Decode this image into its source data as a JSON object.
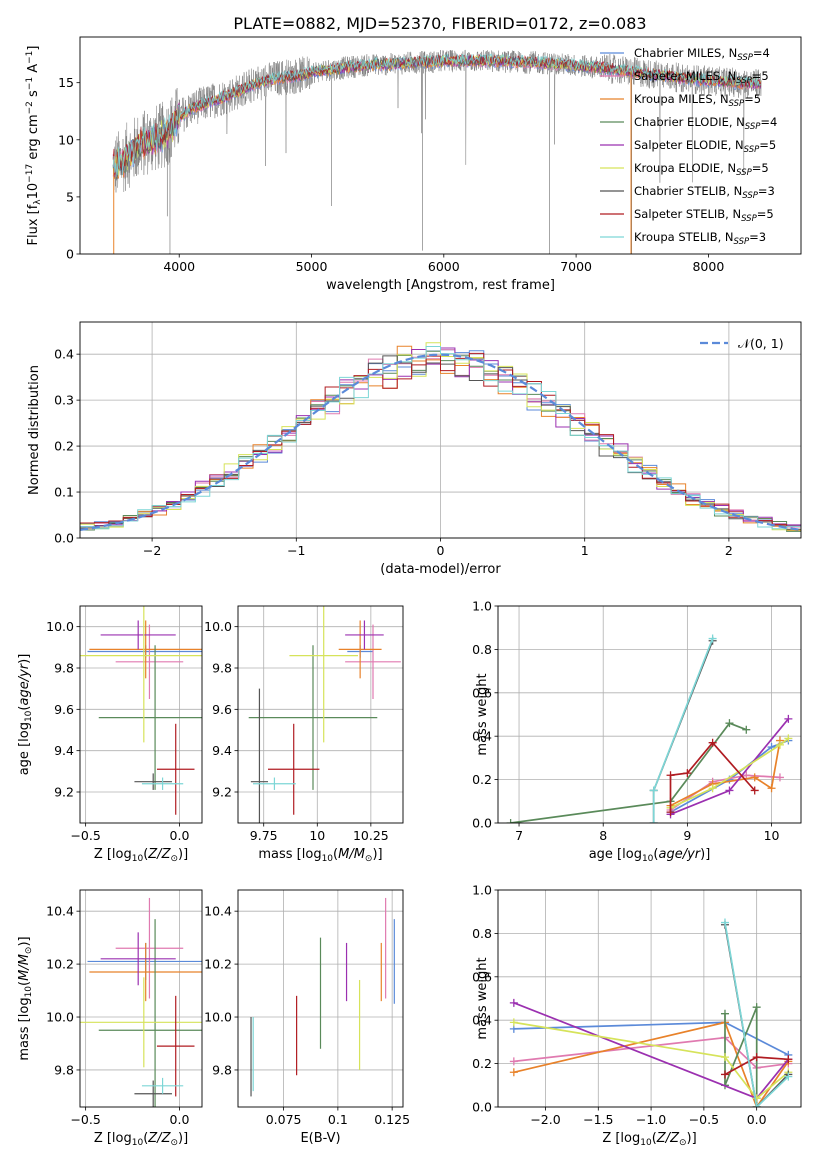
{
  "figure_title": "PLATE=0882, MJD=52370, FIBERID=0172, z=0.083",
  "colors": {
    "Chabrier MILES": "#5b8ad9",
    "Salpeter MILES": "#e07ab0",
    "Kroupa MILES": "#e8822a",
    "Chabrier ELODIE": "#5a8a5a",
    "Salpeter ELODIE": "#9b30b0",
    "Kroupa ELODIE": "#d6e35a",
    "Chabrier STELIB": "#555555",
    "Salpeter STELIB": "#b01c22",
    "Kroupa STELIB": "#7dd6d6",
    "data": "#808080",
    "normal": "#5b8ad9"
  },
  "chart_data": [
    {
      "id": "spectrum",
      "type": "line",
      "title": "PLATE=0882, MJD=52370, FIBERID=0172, z=0.083",
      "xlabel": "wavelength [Angstrom, rest frame]",
      "ylabel": "Flux [f_λ 10^-17 erg cm^-2 s^-1 A^-1]",
      "xlim": [
        3250,
        8700
      ],
      "ylim": [
        0,
        19
      ],
      "xticks": [
        4000,
        5000,
        6000,
        7000,
        8000
      ],
      "yticks": [
        0,
        5,
        10,
        15
      ],
      "legend_position": "right",
      "legend": [
        {
          "name": "Chabrier MILES",
          "sub": "SSP",
          "n": "4",
          "prefix": "Chabrier MILES, N"
        },
        {
          "name": "Salpeter MILES",
          "sub": "SSP",
          "n": "5",
          "prefix": "Salpeter MILES, N"
        },
        {
          "name": "Kroupa MILES",
          "sub": "SSP",
          "n": "5",
          "prefix": "Kroupa MILES, N"
        },
        {
          "name": "Chabrier ELODIE",
          "sub": "SSP",
          "n": "4",
          "prefix": "Chabrier ELODIE, N"
        },
        {
          "name": "Salpeter ELODIE",
          "sub": "SSP",
          "n": "5",
          "prefix": "Salpeter ELODIE, N"
        },
        {
          "name": "Kroupa ELODIE",
          "sub": "SSP",
          "n": "5",
          "prefix": "Kroupa ELODIE, N"
        },
        {
          "name": "Chabrier STELIB",
          "sub": "SSP",
          "n": "3",
          "prefix": "Chabrier STELIB, N"
        },
        {
          "name": "Salpeter STELIB",
          "sub": "SSP",
          "n": "5",
          "prefix": "Salpeter STELIB, N"
        },
        {
          "name": "Kroupa STELIB",
          "sub": "SSP",
          "n": "3",
          "prefix": "Kroupa STELIB, N"
        }
      ],
      "continuum": {
        "wavelength": [
          3500,
          3600,
          3700,
          3800,
          3900,
          4000,
          4100,
          4200,
          4300,
          4400,
          4500,
          4600,
          4700,
          4800,
          4900,
          5000,
          5100,
          5200,
          5300,
          5400,
          5500,
          5600,
          5700,
          5800,
          5900,
          6000,
          6200,
          6400,
          6600,
          6800,
          7000,
          7200,
          7400,
          7600,
          7800,
          8000,
          8200,
          8400
        ],
        "flux": [
          7.5,
          8.5,
          9.5,
          10.0,
          10.5,
          12.0,
          12.8,
          13.2,
          13.6,
          14.0,
          14.5,
          15.0,
          15.3,
          15.5,
          15.6,
          15.9,
          16.1,
          16.2,
          16.4,
          16.5,
          16.6,
          16.6,
          16.7,
          16.8,
          16.8,
          16.9,
          16.9,
          16.9,
          16.8,
          16.7,
          16.5,
          16.3,
          16.0,
          15.7,
          15.4,
          15.2,
          15.0,
          14.9
        ]
      }
    },
    {
      "id": "residuals",
      "type": "histogram",
      "xlabel": "(data-model)/error",
      "ylabel": "Normed distribution",
      "xlim": [
        -2.5,
        2.5
      ],
      "ylim": [
        0,
        0.47
      ],
      "xticks": [
        -2,
        -1,
        0,
        1,
        2
      ],
      "yticks": [
        0.0,
        0.1,
        0.2,
        0.3,
        0.4
      ],
      "grid": true,
      "legend_position": "top-right",
      "normal_label": "𝒩(0, 1)",
      "bin_width": 0.1
    },
    {
      "id": "age-vs-Z",
      "type": "errorbar",
      "xlabel": "Z [log10(Z/Z⊙)]",
      "ylabel": "age [log10(age/yr)]",
      "xlim": [
        -0.53,
        0.12
      ],
      "ylim": [
        9.05,
        10.1
      ],
      "xticks": [
        -0.5,
        0.0
      ],
      "yticks": [
        9.2,
        9.4,
        9.6,
        9.8,
        10.0
      ],
      "grid": true,
      "points": [
        {
          "model": "Chabrier MILES",
          "x": -0.18,
          "xerr": 0.31,
          "y": 9.88,
          "yerr": 0.03
        },
        {
          "model": "Salpeter MILES",
          "x": -0.16,
          "xerr": 0.18,
          "y": 9.83,
          "yerr": 0.18
        },
        {
          "model": "Kroupa MILES",
          "x": -0.18,
          "xerr": 0.3,
          "y": 9.89,
          "yerr": 0.14
        },
        {
          "model": "Chabrier ELODIE",
          "x": -0.13,
          "xerr": 0.3,
          "y": 9.56,
          "yerr": 0.35
        },
        {
          "model": "Salpeter ELODIE",
          "x": -0.22,
          "xerr": 0.2,
          "y": 9.96,
          "yerr": 0.07
        },
        {
          "model": "Kroupa ELODIE",
          "x": -0.19,
          "xerr": 0.36,
          "y": 9.86,
          "yerr": 0.42
        },
        {
          "model": "Chabrier STELIB",
          "x": -0.14,
          "xerr": 0.1,
          "y": 9.25,
          "yerr": 0.04
        },
        {
          "model": "Salpeter STELIB",
          "x": -0.02,
          "xerr": 0.1,
          "y": 9.31,
          "yerr": 0.22
        },
        {
          "model": "Kroupa STELIB",
          "x": -0.09,
          "xerr": 0.11,
          "y": 9.24,
          "yerr": 0.03
        }
      ]
    },
    {
      "id": "age-vs-mass",
      "type": "errorbar",
      "xlabel": "mass [log10(M/M⊙)]",
      "ylabel": "",
      "xlim": [
        9.63,
        10.4
      ],
      "ylim": [
        9.05,
        10.1
      ],
      "xticks": [
        9.75,
        10.0,
        10.25
      ],
      "yticks": [
        9.2,
        9.4,
        9.6,
        9.8,
        10.0
      ],
      "grid": true,
      "points": [
        {
          "model": "Chabrier MILES",
          "x": 10.2,
          "xerr": 0.06,
          "y": 9.88,
          "yerr": 0.03
        },
        {
          "model": "Salpeter MILES",
          "x": 10.26,
          "xerr": 0.13,
          "y": 9.83,
          "yerr": 0.18
        },
        {
          "model": "Kroupa MILES",
          "x": 10.2,
          "xerr": 0.1,
          "y": 9.89,
          "yerr": 0.14
        },
        {
          "model": "Chabrier ELODIE",
          "x": 9.98,
          "xerr": 0.3,
          "y": 9.56,
          "yerr": 0.35
        },
        {
          "model": "Salpeter ELODIE",
          "x": 10.22,
          "xerr": 0.09,
          "y": 9.96,
          "yerr": 0.07
        },
        {
          "model": "Kroupa ELODIE",
          "x": 10.03,
          "xerr": 0.16,
          "y": 9.86,
          "yerr": 0.42
        },
        {
          "model": "Chabrier STELIB",
          "x": 9.73,
          "xerr": 0.04,
          "y": 9.25,
          "yerr": 0.45
        },
        {
          "model": "Salpeter STELIB",
          "x": 9.89,
          "xerr": 0.12,
          "y": 9.31,
          "yerr": 0.22
        },
        {
          "model": "Kroupa STELIB",
          "x": 9.8,
          "xerr": 0.1,
          "y": 9.24,
          "yerr": 0.03
        }
      ]
    },
    {
      "id": "weight-vs-age",
      "type": "line",
      "xlabel": "age [log10(age/yr)]",
      "ylabel": "mass weight",
      "xlim": [
        6.75,
        10.35
      ],
      "ylim": [
        0,
        1.0
      ],
      "xticks": [
        7,
        8,
        9,
        10
      ],
      "yticks": [
        0.0,
        0.2,
        0.4,
        0.6,
        0.8,
        1.0
      ],
      "grid": true,
      "series": [
        {
          "name": "Chabrier MILES",
          "x": [
            8.8,
            9.5,
            10.0,
            10.2
          ],
          "y": [
            0.05,
            0.2,
            0.35,
            0.38
          ]
        },
        {
          "name": "Salpeter MILES",
          "x": [
            8.8,
            9.3,
            9.7,
            10.1
          ],
          "y": [
            0.06,
            0.19,
            0.22,
            0.21
          ]
        },
        {
          "name": "Kroupa MILES",
          "x": [
            8.8,
            9.3,
            9.8,
            10.0,
            10.1
          ],
          "y": [
            0.08,
            0.18,
            0.21,
            0.16,
            0.38
          ]
        },
        {
          "name": "Chabrier ELODIE",
          "x": [
            6.9,
            8.8,
            9.5,
            9.7
          ],
          "y": [
            0.0,
            0.1,
            0.46,
            0.43
          ]
        },
        {
          "name": "Salpeter ELODIE",
          "x": [
            8.8,
            9.5,
            10.2
          ],
          "y": [
            0.04,
            0.15,
            0.48
          ]
        },
        {
          "name": "Kroupa ELODIE",
          "x": [
            8.8,
            9.3,
            10.1,
            10.2
          ],
          "y": [
            0.07,
            0.16,
            0.36,
            0.39
          ]
        },
        {
          "name": "Chabrier STELIB",
          "x": [
            8.6,
            8.6,
            9.3
          ],
          "y": [
            0.0,
            0.15,
            0.84
          ]
        },
        {
          "name": "Salpeter STELIB",
          "x": [
            8.8,
            8.8,
            9.0,
            9.3,
            9.8
          ],
          "y": [
            0.05,
            0.22,
            0.23,
            0.37,
            0.15
          ]
        },
        {
          "name": "Kroupa STELIB",
          "x": [
            8.6,
            8.6,
            9.3
          ],
          "y": [
            0.0,
            0.15,
            0.85
          ]
        }
      ]
    },
    {
      "id": "mass-vs-Z",
      "type": "errorbar",
      "xlabel": "Z [log10(Z/Z⊙)]",
      "ylabel": "mass [log10(M/M⊙)]",
      "xlim": [
        -0.53,
        0.12
      ],
      "ylim": [
        9.66,
        10.48
      ],
      "xticks": [
        -0.5,
        0.0
      ],
      "yticks": [
        9.8,
        10.0,
        10.2,
        10.4
      ],
      "grid": true,
      "points": [
        {
          "model": "Chabrier MILES",
          "x": -0.18,
          "xerr": 0.31,
          "y": 10.21,
          "yerr": 0.07
        },
        {
          "model": "Salpeter MILES",
          "x": -0.16,
          "xerr": 0.18,
          "y": 10.26,
          "yerr": 0.19
        },
        {
          "model": "Kroupa MILES",
          "x": -0.18,
          "xerr": 0.3,
          "y": 10.17,
          "yerr": 0.11
        },
        {
          "model": "Chabrier ELODIE",
          "x": -0.13,
          "xerr": 0.3,
          "y": 9.95,
          "yerr": 0.42
        },
        {
          "model": "Salpeter ELODIE",
          "x": -0.22,
          "xerr": 0.2,
          "y": 10.22,
          "yerr": 0.1
        },
        {
          "model": "Kroupa ELODIE",
          "x": -0.19,
          "xerr": 0.36,
          "y": 9.98,
          "yerr": 0.17
        },
        {
          "model": "Chabrier STELIB",
          "x": -0.14,
          "xerr": 0.1,
          "y": 9.71,
          "yerr": 0.05
        },
        {
          "model": "Salpeter STELIB",
          "x": -0.02,
          "xerr": 0.1,
          "y": 9.89,
          "yerr": 0.19
        },
        {
          "model": "Kroupa STELIB",
          "x": -0.09,
          "xerr": 0.11,
          "y": 9.74,
          "yerr": 0.03
        }
      ]
    },
    {
      "id": "mass-vs-ebv",
      "type": "errorbar",
      "xlabel": "E(B-V)",
      "ylabel": "",
      "xlim": [
        0.054,
        0.13
      ],
      "ylim": [
        9.66,
        10.48
      ],
      "xticks": [
        0.075,
        0.1,
        0.125
      ],
      "yticks": [
        9.8,
        10.0,
        10.2,
        10.4
      ],
      "grid": true,
      "points": [
        {
          "model": "Chabrier MILES",
          "x": 0.126,
          "y": 10.21,
          "yerr": 0.16
        },
        {
          "model": "Salpeter MILES",
          "x": 0.122,
          "y": 10.26,
          "yerr": 0.19
        },
        {
          "model": "Kroupa MILES",
          "x": 0.12,
          "y": 10.17,
          "yerr": 0.11
        },
        {
          "model": "Chabrier ELODIE",
          "x": 0.092,
          "y": 10.09,
          "yerr": 0.21
        },
        {
          "model": "Salpeter ELODIE",
          "x": 0.104,
          "y": 10.17,
          "yerr": 0.11
        },
        {
          "model": "Kroupa ELODIE",
          "x": 0.11,
          "y": 9.97,
          "yerr": 0.17
        },
        {
          "model": "Chabrier STELIB",
          "x": 0.06,
          "y": 9.85,
          "yerr": 0.15
        },
        {
          "model": "Salpeter STELIB",
          "x": 0.081,
          "y": 9.93,
          "yerr": 0.15
        },
        {
          "model": "Kroupa STELIB",
          "x": 0.061,
          "y": 9.86,
          "yerr": 0.14
        }
      ]
    },
    {
      "id": "weight-vs-Z",
      "type": "line",
      "xlabel": "Z [log10(Z/Z⊙)]",
      "ylabel": "mass weight",
      "xlim": [
        -2.45,
        0.42
      ],
      "ylim": [
        0,
        1.0
      ],
      "xticks": [
        -2.0,
        -1.5,
        -1.0,
        -0.5,
        0.0
      ],
      "yticks": [
        0.0,
        0.2,
        0.4,
        0.6,
        0.8,
        1.0
      ],
      "grid": true,
      "series": [
        {
          "name": "Chabrier MILES",
          "x": [
            -2.3,
            -0.3,
            0.3
          ],
          "y": [
            0.36,
            0.39,
            0.24
          ]
        },
        {
          "name": "Salpeter MILES",
          "x": [
            -2.3,
            -0.3,
            0.0,
            0.3
          ],
          "y": [
            0.21,
            0.32,
            0.18,
            0.2
          ]
        },
        {
          "name": "Kroupa MILES",
          "x": [
            -2.3,
            -0.3,
            0.0,
            0.3
          ],
          "y": [
            0.16,
            0.39,
            0.0,
            0.21
          ]
        },
        {
          "name": "Chabrier ELODIE",
          "x": [
            -0.3,
            -0.3,
            0.0,
            0.0
          ],
          "y": [
            0.43,
            0.1,
            0.46,
            0.0
          ]
        },
        {
          "name": "Salpeter ELODIE",
          "x": [
            -2.3,
            0.0,
            0.3
          ],
          "y": [
            0.48,
            0.04,
            0.22
          ]
        },
        {
          "name": "Kroupa ELODIE",
          "x": [
            -2.3,
            -0.3,
            0.0,
            0.3
          ],
          "y": [
            0.39,
            0.23,
            0.04,
            0.16
          ]
        },
        {
          "name": "Chabrier STELIB",
          "x": [
            -0.3,
            0.0,
            0.3
          ],
          "y": [
            0.84,
            0.0,
            0.15
          ]
        },
        {
          "name": "Salpeter STELIB",
          "x": [
            -0.3,
            0.0,
            0.3
          ],
          "y": [
            0.15,
            0.23,
            0.22
          ]
        },
        {
          "name": "Kroupa STELIB",
          "x": [
            -0.3,
            0.0,
            0.3
          ],
          "y": [
            0.85,
            0.0,
            0.14
          ]
        }
      ]
    }
  ]
}
